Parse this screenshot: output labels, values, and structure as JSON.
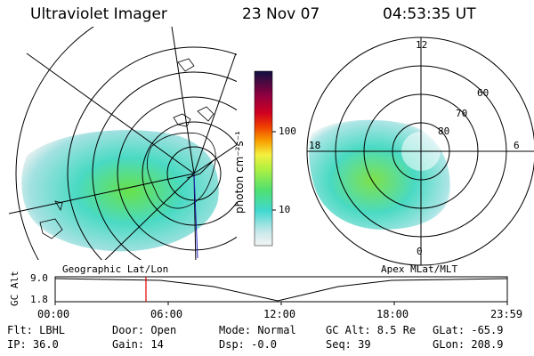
{
  "header": {
    "instrument": "Ultraviolet Imager",
    "date": "23 Nov 07",
    "time": "04:53:35 UT"
  },
  "panels": {
    "left_label": "Geographic Lat/Lon",
    "right_label": "Apex MLat/MLT",
    "polar_mlt_labels": [
      "12",
      "6",
      "0",
      "18"
    ],
    "polar_lat_labels": [
      "60",
      "70",
      "80"
    ]
  },
  "colorbar": {
    "unit_label": "photon cm⁻²s⁻¹",
    "tick_labels": [
      "100",
      "10"
    ]
  },
  "timeline": {
    "y_label": "GC Alt",
    "y_ticks": [
      "9.0",
      "1.8"
    ],
    "x_ticks": [
      "00:00",
      "06:00",
      "12:00",
      "18:00",
      "23:59"
    ],
    "marker_time": "04:53"
  },
  "status": {
    "row1": [
      {
        "key": "Flt",
        "text": "Flt: LBHL"
      },
      {
        "key": "Door",
        "text": "Door: Open"
      },
      {
        "key": "Mode",
        "text": "Mode: Normal"
      },
      {
        "key": "GCAlt",
        "text": "GC Alt: 8.5 Re"
      },
      {
        "key": "GLat",
        "text": "GLat: -65.9"
      }
    ],
    "row2": [
      {
        "key": "IP",
        "text": "IP: 36.0"
      },
      {
        "key": "Gain",
        "text": "Gain: 14"
      },
      {
        "key": "Dsp",
        "text": "Dsp:  -0.0"
      },
      {
        "key": "Seq",
        "text": "Seq: 39"
      },
      {
        "key": "GLon",
        "text": "GLon: 208.9"
      }
    ]
  },
  "colors": {
    "marker": "#e00000",
    "meridian": "#2020c0",
    "aurora_low": "#cfe8e8",
    "aurora_mid": "#40d8d0",
    "aurora_high": "#60e040"
  }
}
